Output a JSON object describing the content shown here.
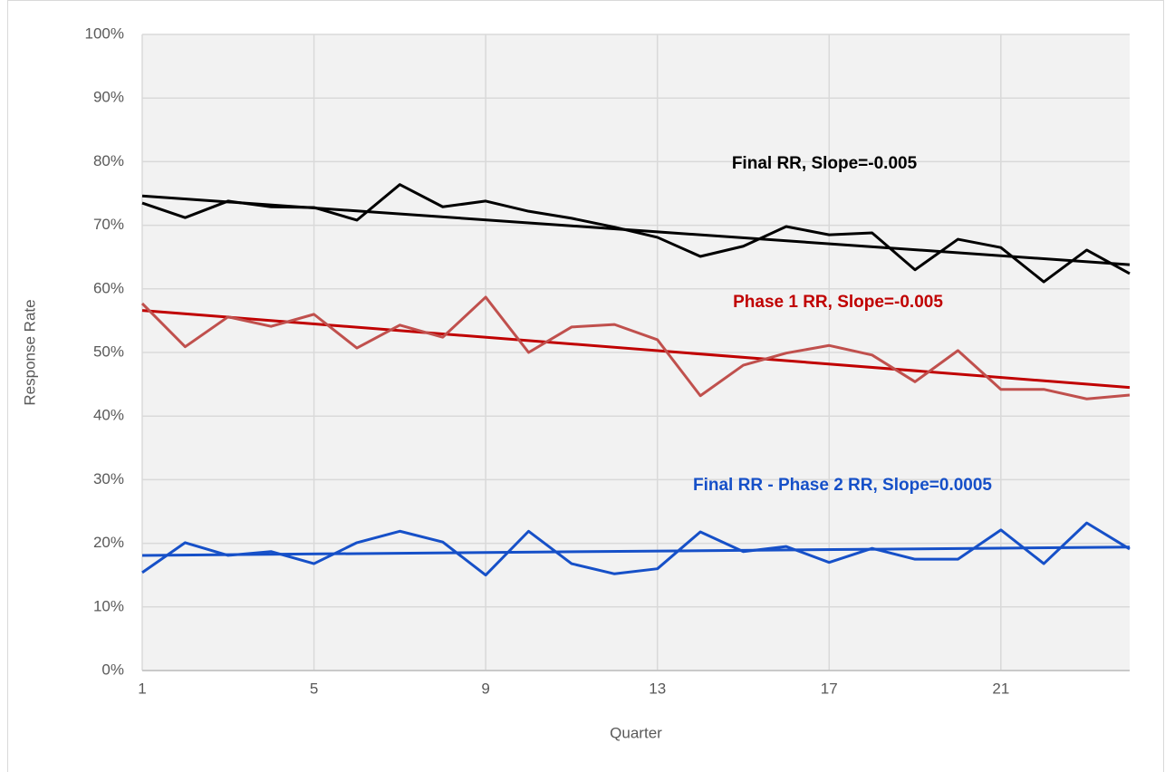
{
  "chart_data": {
    "type": "line",
    "xlabel": "Quarter",
    "ylabel": "Response Rate",
    "xlim": [
      1,
      24
    ],
    "xticks": [
      1,
      5,
      9,
      13,
      17,
      21
    ],
    "ylim": [
      0,
      100
    ],
    "yticks": [
      {
        "value": 0,
        "label": "0%"
      },
      {
        "value": 10,
        "label": "10%"
      },
      {
        "value": 20,
        "label": "20%"
      },
      {
        "value": 30,
        "label": "30%"
      },
      {
        "value": 40,
        "label": "40%"
      },
      {
        "value": 50,
        "label": "50%"
      },
      {
        "value": 60,
        "label": "60%"
      },
      {
        "value": 70,
        "label": "70%"
      },
      {
        "value": 80,
        "label": "80%"
      },
      {
        "value": 90,
        "label": "90%"
      },
      {
        "value": 100,
        "label": "100%"
      }
    ],
    "grid": true,
    "x": [
      1,
      2,
      3,
      4,
      5,
      6,
      7,
      8,
      9,
      10,
      11,
      12,
      13,
      14,
      15,
      16,
      17,
      18,
      19,
      20,
      21,
      22,
      23,
      24
    ],
    "series": [
      {
        "color": "#000000",
        "values": [
          73.5,
          71.2,
          73.8,
          72.9,
          72.8,
          70.8,
          76.4,
          72.9,
          73.8,
          72.2,
          71.1,
          69.7,
          68.1,
          65.1,
          66.7,
          69.8,
          68.5,
          68.8,
          63.0,
          67.8,
          66.5,
          61.1,
          66.1,
          62.4
        ]
      },
      {
        "color": "#c0504d",
        "values": [
          57.7,
          50.9,
          55.6,
          54.1,
          56.0,
          50.7,
          54.3,
          52.4,
          58.7,
          50.0,
          54.0,
          54.4,
          52.0,
          43.2,
          48.0,
          49.9,
          51.1,
          49.6,
          45.4,
          50.3,
          44.2,
          44.2,
          42.7,
          43.3
        ]
      },
      {
        "color": "#1650c8",
        "values": [
          15.4,
          20.1,
          18.1,
          18.7,
          16.8,
          20.1,
          21.9,
          20.2,
          15.0,
          21.9,
          16.8,
          15.2,
          16.0,
          21.8,
          18.7,
          19.5,
          17.0,
          19.2,
          17.5,
          17.5,
          22.1,
          16.8,
          23.2,
          19.1
        ]
      }
    ],
    "trendlines": [
      {
        "color": "#000000",
        "x": [
          1,
          24
        ],
        "values": [
          74.6,
          63.8
        ]
      },
      {
        "color": "#c00000",
        "x": [
          1,
          24
        ],
        "values": [
          56.6,
          44.5
        ]
      },
      {
        "color": "#1650c8",
        "x": [
          1,
          24
        ],
        "values": [
          18.1,
          19.4
        ]
      }
    ],
    "annotations": [
      {
        "text": "Final RR, Slope=-0.005",
        "color": "#000000"
      },
      {
        "text": "Phase 1 RR, Slope=-0.005",
        "color": "#c00000"
      },
      {
        "text": "Final RR - Phase 2 RR, Slope=0.0005",
        "color": "#1650c8"
      }
    ]
  }
}
